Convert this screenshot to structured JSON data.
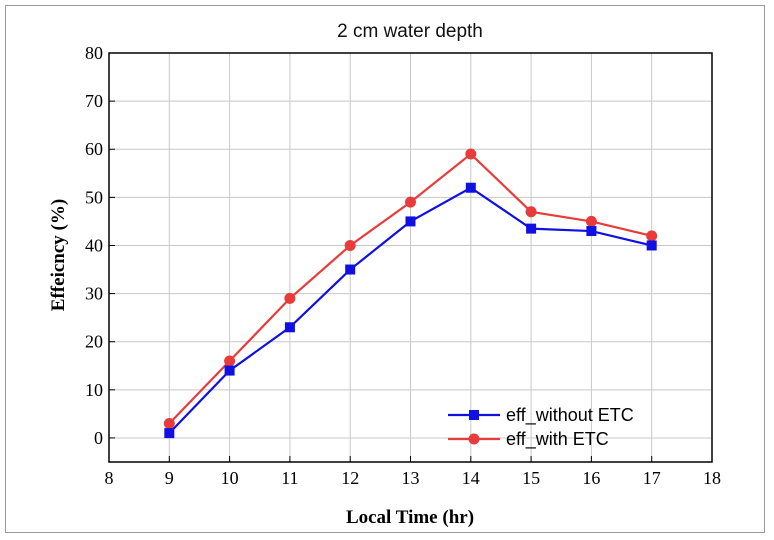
{
  "chart_data": {
    "type": "line",
    "title": "2 cm water depth",
    "xlabel": "Local Time (hr)",
    "ylabel": "Effeicncy (%)",
    "xlim": [
      8,
      18
    ],
    "ylim": [
      -5,
      80
    ],
    "xticks": [
      8,
      9,
      10,
      11,
      12,
      13,
      14,
      15,
      16,
      17,
      18
    ],
    "yticks": [
      0,
      10,
      20,
      30,
      40,
      50,
      60,
      70,
      80
    ],
    "grid": true,
    "legend_position": "bottom-right",
    "series": [
      {
        "name": "eff_without ETC",
        "color": "#1010e0",
        "marker": "square",
        "x": [
          9,
          10,
          11,
          12,
          13,
          14,
          15,
          16,
          17
        ],
        "y": [
          1,
          14,
          23,
          35,
          45,
          52,
          43.5,
          43,
          40
        ]
      },
      {
        "name": "eff_with ETC",
        "color": "#e83c3c",
        "marker": "circle",
        "x": [
          9,
          10,
          11,
          12,
          13,
          14,
          15,
          16,
          17
        ],
        "y": [
          3,
          16,
          29,
          40,
          49,
          59,
          47,
          45,
          42
        ]
      }
    ]
  }
}
